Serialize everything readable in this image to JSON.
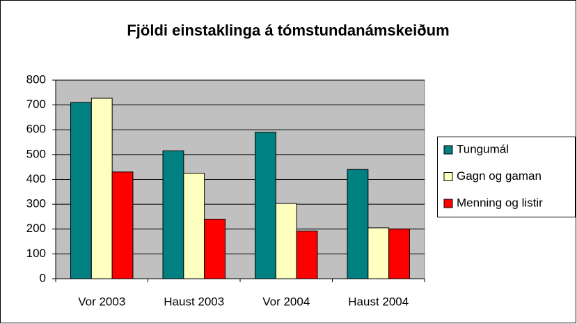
{
  "chart_data": {
    "type": "bar",
    "title": "Fjöldi einstaklinga á tómstundanámskeiðum",
    "categories": [
      "Vor 2003",
      "Haust 2003",
      "Vor 2004",
      "Haust 2004"
    ],
    "series": [
      {
        "name": "Tungumál",
        "color": "#008080",
        "values": [
          710,
          515,
          590,
          440
        ]
      },
      {
        "name": "Gagn og gaman",
        "color": "#ffffc0",
        "values": [
          727,
          425,
          303,
          205
        ]
      },
      {
        "name": "Menning og listir",
        "color": "#ff0000",
        "values": [
          430,
          240,
          192,
          200
        ]
      }
    ],
    "ylim": [
      0,
      800
    ],
    "yticks": [
      0,
      100,
      200,
      300,
      400,
      500,
      600,
      700,
      800
    ],
    "grid": true,
    "legend": "right",
    "plot_background": "#c0c0c0"
  }
}
